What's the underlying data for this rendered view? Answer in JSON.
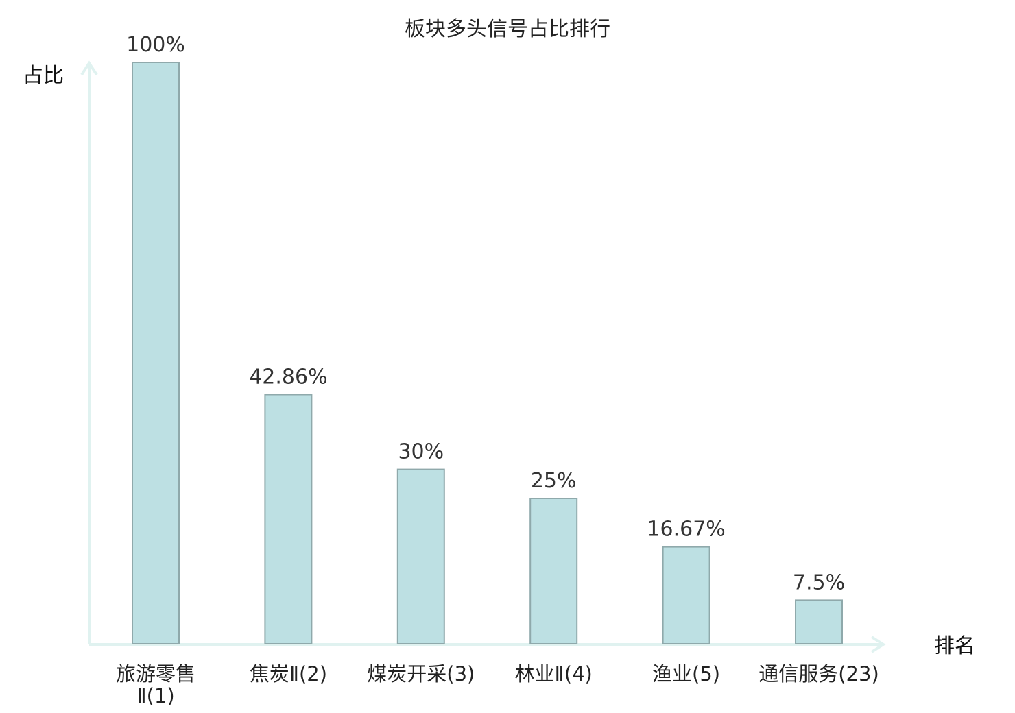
{
  "chart_data": {
    "type": "bar",
    "title": "板块多头信号占比排行",
    "ylabel": "占比",
    "xlabel": "排名",
    "categories": [
      {
        "lines": [
          "旅游零售",
          "Ⅱ(1)"
        ],
        "highlight": false
      },
      {
        "lines": [
          "焦炭Ⅱ(2)"
        ],
        "highlight": false
      },
      {
        "lines": [
          "煤炭开采(3)"
        ],
        "highlight": false
      },
      {
        "lines": [
          "林业Ⅱ(4)"
        ],
        "highlight": false
      },
      {
        "lines": [
          "渔业(5)"
        ],
        "highlight": false
      },
      {
        "lines": [
          "通信服务(23)"
        ],
        "highlight": true
      }
    ],
    "values": [
      100,
      42.86,
      30,
      25,
      16.67,
      7.5
    ],
    "value_labels": [
      "100%",
      "42.86%",
      "30%",
      "25%",
      "16.67%",
      "7.5%"
    ],
    "ylim": [
      0,
      100
    ],
    "grid": false,
    "colors": {
      "bar_fill": "#bde0e3",
      "bar_stroke": "#8fa9ab",
      "axis": "#e0f2f0",
      "highlight_label": "#e0191f",
      "label": "#222222"
    }
  }
}
